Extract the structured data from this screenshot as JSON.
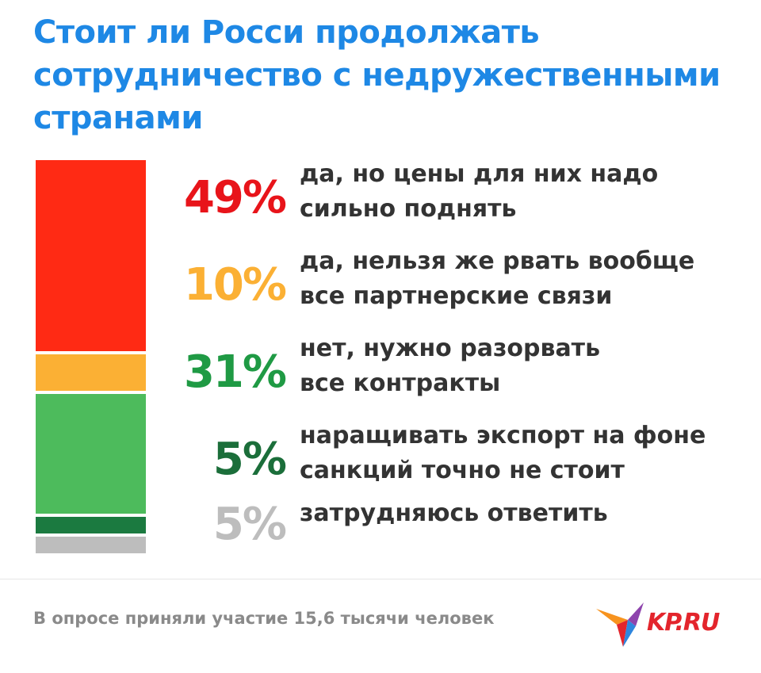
{
  "chart_data": {
    "type": "stacked_bar",
    "title": "Стоит ли Росси продолжать сотрудничество с недружественными странами",
    "categories": [
      "да, но цены для них надо сильно поднять",
      "да, нельзя же рвать вообще все партнерские связи",
      "нет, нужно разорвать все контракты",
      "наращивать экспорт на фоне санкций точно не стоит",
      "затрудняюсь ответить"
    ],
    "values": [
      49,
      10,
      31,
      5,
      5
    ],
    "value_labels": [
      "49%",
      "10%",
      "31%",
      "5%",
      "5%"
    ],
    "colors": [
      "#ff2a14",
      "#fbb034",
      "#4dbb5c",
      "#1b7a40",
      "#bdbdbd"
    ],
    "label_colors": [
      "#e8141a",
      "#fbb034",
      "#1f9a44",
      "#1b6e3a",
      "#bdbdbd"
    ],
    "note": "В опросе приняли участие 15,6 тысячи человек",
    "logo": "KP.RU"
  }
}
